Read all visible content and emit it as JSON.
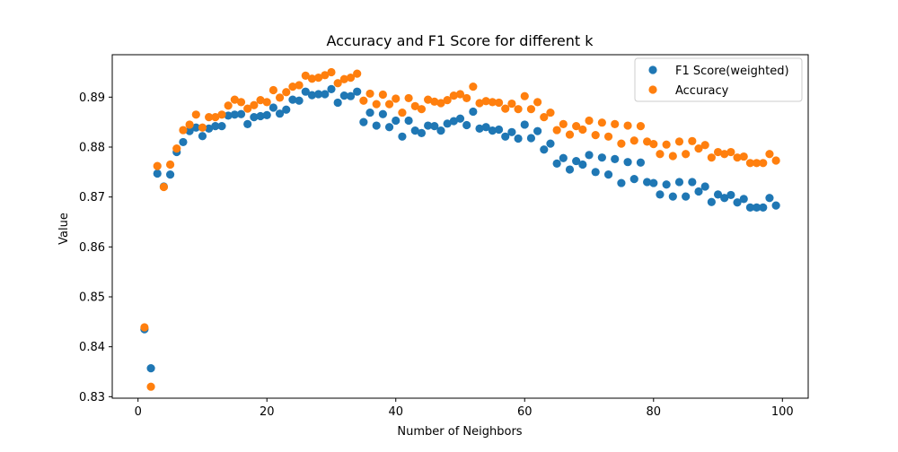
{
  "chart_data": {
    "type": "scatter",
    "title": "Accuracy and F1 Score for different k",
    "xlabel": "Number of Neighbors",
    "ylabel": "Value",
    "xlim": [
      -4,
      104
    ],
    "ylim": [
      0.8297,
      0.8985
    ],
    "xticks": [
      0,
      20,
      40,
      60,
      80,
      100
    ],
    "yticks": [
      0.83,
      0.84,
      0.85,
      0.86,
      0.87,
      0.88,
      0.89
    ],
    "ytick_labels": [
      "0.83",
      "0.84",
      "0.85",
      "0.86",
      "0.87",
      "0.88",
      "0.89"
    ],
    "legend_position": "top-right",
    "grid": false,
    "x": [
      1,
      2,
      3,
      4,
      5,
      6,
      7,
      8,
      9,
      10,
      11,
      12,
      13,
      14,
      15,
      16,
      17,
      18,
      19,
      20,
      21,
      22,
      23,
      24,
      25,
      26,
      27,
      28,
      29,
      30,
      31,
      32,
      33,
      34,
      35,
      36,
      37,
      38,
      39,
      40,
      41,
      42,
      43,
      44,
      45,
      46,
      47,
      48,
      49,
      50,
      51,
      52,
      53,
      54,
      55,
      56,
      57,
      58,
      59,
      60,
      61,
      62,
      63,
      64,
      65,
      66,
      67,
      68,
      69,
      70,
      71,
      72,
      73,
      74,
      75,
      76,
      77,
      78,
      79,
      80,
      81,
      82,
      83,
      84,
      85,
      86,
      87,
      88,
      89,
      90,
      91,
      92,
      93,
      94,
      95,
      96,
      97,
      98,
      99
    ],
    "series": [
      {
        "name": "F1 Score(weighted)",
        "color": "#1f77b4",
        "values": [
          0.8435,
          0.8357,
          0.8747,
          0.8721,
          0.8745,
          0.879,
          0.881,
          0.8832,
          0.8839,
          0.8822,
          0.8837,
          0.8842,
          0.8842,
          0.8863,
          0.8865,
          0.8866,
          0.8846,
          0.886,
          0.8862,
          0.8864,
          0.8879,
          0.8867,
          0.8875,
          0.8895,
          0.8893,
          0.8911,
          0.8904,
          0.8906,
          0.8906,
          0.8916,
          0.8889,
          0.8903,
          0.8902,
          0.8911,
          0.885,
          0.8869,
          0.8843,
          0.8866,
          0.884,
          0.8853,
          0.8821,
          0.8853,
          0.8833,
          0.8828,
          0.8843,
          0.8842,
          0.8833,
          0.8847,
          0.8852,
          0.8857,
          0.8844,
          0.8871,
          0.8837,
          0.884,
          0.8833,
          0.8835,
          0.8821,
          0.883,
          0.8817,
          0.8845,
          0.8818,
          0.8832,
          0.8795,
          0.8807,
          0.8767,
          0.8778,
          0.8755,
          0.8772,
          0.8765,
          0.8784,
          0.875,
          0.8779,
          0.8745,
          0.8776,
          0.8728,
          0.877,
          0.8736,
          0.8769,
          0.873,
          0.8728,
          0.8705,
          0.8725,
          0.8701,
          0.873,
          0.8701,
          0.873,
          0.8711,
          0.8721,
          0.869,
          0.8705,
          0.8698,
          0.8704,
          0.8689,
          0.8696,
          0.8679,
          0.8679,
          0.8679,
          0.8698,
          0.8683
        ]
      },
      {
        "name": "Accuracy",
        "color": "#ff7f0e",
        "values": [
          0.8439,
          0.832,
          0.8762,
          0.872,
          0.8765,
          0.8797,
          0.8834,
          0.8845,
          0.8865,
          0.8839,
          0.886,
          0.886,
          0.8865,
          0.8883,
          0.8895,
          0.889,
          0.8877,
          0.8884,
          0.8894,
          0.889,
          0.8914,
          0.8899,
          0.891,
          0.8921,
          0.8924,
          0.8943,
          0.8937,
          0.8939,
          0.8944,
          0.895,
          0.8928,
          0.8936,
          0.8939,
          0.8947,
          0.8893,
          0.8907,
          0.8886,
          0.8905,
          0.8886,
          0.8897,
          0.8869,
          0.8898,
          0.8882,
          0.8876,
          0.8895,
          0.8891,
          0.8888,
          0.8894,
          0.8903,
          0.8906,
          0.8898,
          0.8921,
          0.8888,
          0.8892,
          0.889,
          0.8889,
          0.8877,
          0.8887,
          0.8876,
          0.8902,
          0.8876,
          0.889,
          0.886,
          0.8869,
          0.8834,
          0.8846,
          0.8825,
          0.8842,
          0.8835,
          0.8853,
          0.8824,
          0.8849,
          0.8821,
          0.8846,
          0.8807,
          0.8843,
          0.8813,
          0.8842,
          0.8811,
          0.8806,
          0.8786,
          0.8805,
          0.8782,
          0.8811,
          0.8786,
          0.8812,
          0.8797,
          0.8804,
          0.8779,
          0.879,
          0.8786,
          0.879,
          0.8779,
          0.8781,
          0.8768,
          0.8768,
          0.8768,
          0.8786,
          0.8773
        ]
      }
    ]
  }
}
